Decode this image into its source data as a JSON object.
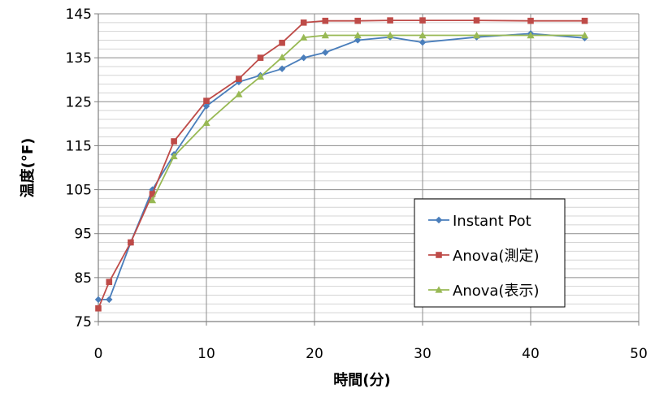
{
  "chart_data": {
    "type": "line",
    "xlabel": "時間(分)",
    "ylabel": "温度(°F)",
    "xlim": [
      0,
      50
    ],
    "ylim": [
      75,
      145
    ],
    "xticks": [
      0,
      10,
      20,
      30,
      40,
      50
    ],
    "yticks": [
      75,
      85,
      95,
      105,
      115,
      125,
      135,
      145
    ],
    "grid": true,
    "legend_position": "bottom-right",
    "series": [
      {
        "name": "Instant Pot",
        "color": "#4a7ebb",
        "marker": "diamond",
        "x": [
          0,
          1,
          3,
          5,
          7,
          10,
          13,
          15,
          17,
          19,
          21,
          24,
          27,
          30,
          35,
          40,
          45
        ],
        "y": [
          80,
          80,
          93,
          105,
          113,
          124,
          129.5,
          131,
          132.5,
          135,
          136.2,
          139,
          139.7,
          138.5,
          139.7,
          140.5,
          139.5
        ]
      },
      {
        "name": "Anova(測定)",
        "color": "#be4b48",
        "marker": "square",
        "x": [
          0,
          1,
          3,
          5,
          7,
          10,
          13,
          15,
          17,
          19,
          21,
          24,
          27,
          30,
          35,
          40,
          45
        ],
        "y": [
          78,
          84,
          93,
          104,
          116,
          125.2,
          130.2,
          135,
          138.4,
          143,
          143.4,
          143.4,
          143.5,
          143.5,
          143.5,
          143.4,
          143.4
        ]
      },
      {
        "name": "Anova(表示)",
        "color": "#98b954",
        "marker": "triangle",
        "x": [
          5,
          7,
          10,
          13,
          15,
          17,
          19,
          21,
          24,
          27,
          30,
          35,
          40,
          45
        ],
        "y": [
          102.6,
          112.6,
          120.2,
          126.7,
          130.7,
          135.1,
          139.6,
          140.1,
          140.1,
          140.1,
          140.1,
          140.1,
          140.1,
          140.1
        ]
      }
    ]
  }
}
